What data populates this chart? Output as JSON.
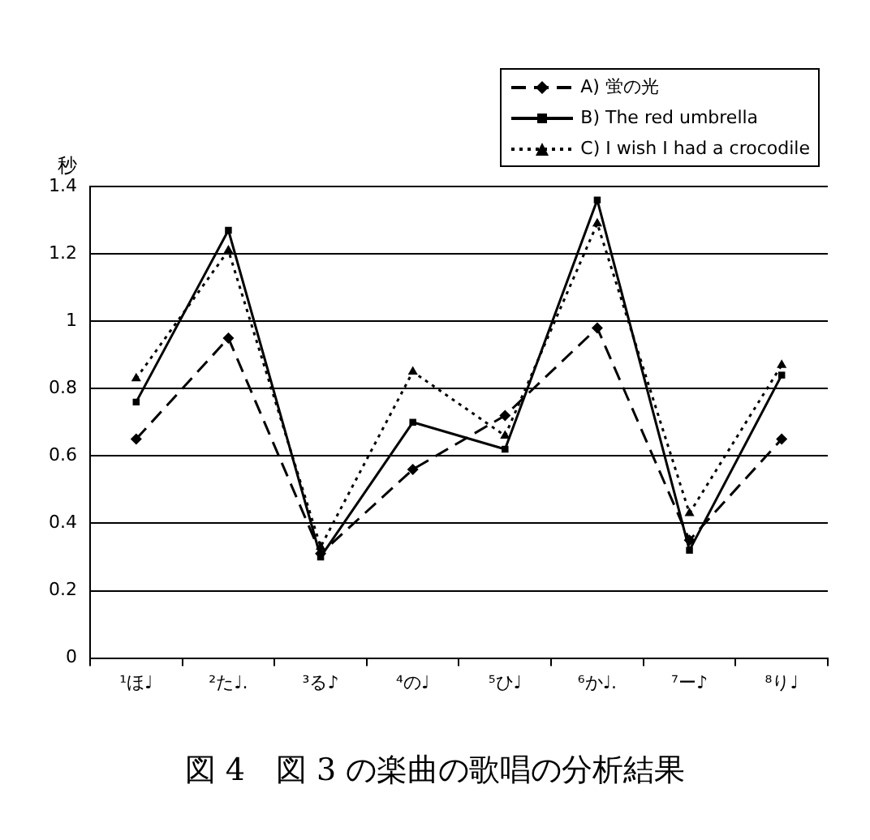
{
  "chart_data": {
    "type": "line",
    "title": "図 4　図 3 の楽曲の歌唱の分析結果",
    "ylabel": "秒",
    "categories": [
      "¹ほ♩",
      "²た♩.",
      "³る♪",
      "⁴の♩",
      "⁵ひ♩",
      "⁶か♩.",
      "⁷ー♪",
      "⁸り♩"
    ],
    "series": [
      {
        "name": "A) 蛍の光",
        "color": "#000000",
        "marker": "diamond",
        "line_style": "dashed",
        "values": [
          0.65,
          0.95,
          0.31,
          0.56,
          0.72,
          0.98,
          0.35,
          0.65
        ]
      },
      {
        "name": "B) The red umbrella",
        "color": "#000000",
        "marker": "square",
        "line_style": "solid",
        "values": [
          0.76,
          1.27,
          0.3,
          0.7,
          0.62,
          1.36,
          0.32,
          0.84
        ]
      },
      {
        "name": "C) I wish I had a crocodile",
        "color": "#000000",
        "marker": "triangle",
        "line_style": "dotted",
        "values": [
          0.83,
          1.21,
          0.33,
          0.85,
          0.66,
          1.29,
          0.43,
          0.87
        ]
      }
    ],
    "ylim": [
      0,
      1.4
    ],
    "yticks": [
      0,
      0.2,
      0.4,
      0.6,
      0.8,
      1,
      1.2,
      1.4
    ],
    "grid": "y",
    "legend": "top right"
  }
}
